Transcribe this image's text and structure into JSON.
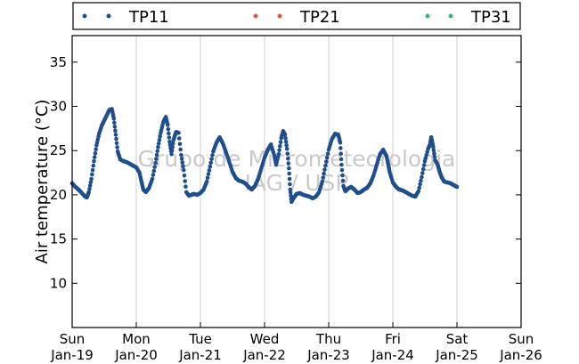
{
  "watermark": {
    "line1": "Grupo de Micrometeorologia",
    "line2": "IAG / USP"
  },
  "chart_data": {
    "type": "scatter",
    "ylabel": "Air temperature (°C)",
    "ylim": [
      5,
      38
    ],
    "yticks": [
      10,
      15,
      20,
      25,
      30,
      35
    ],
    "xlim": [
      "2014-01-19",
      "2014-01-26"
    ],
    "xticks": [
      {
        "day": "Sun",
        "date": "Jan-19"
      },
      {
        "day": "Mon",
        "date": "Jan-20"
      },
      {
        "day": "Tue",
        "date": "Jan-21"
      },
      {
        "day": "Wed",
        "date": "Jan-22"
      },
      {
        "day": "Thu",
        "date": "Jan-23"
      },
      {
        "day": "Fri",
        "date": "Jan-24"
      },
      {
        "day": "Sat",
        "date": "Jan-25"
      },
      {
        "day": "Sun",
        "date": "Jan-26"
      }
    ],
    "grid": "vertical",
    "legend_position": "top",
    "series": [
      {
        "name": "TP11",
        "color": "#1f4e8c",
        "points": [
          [
            0.0,
            21.3
          ],
          [
            0.05,
            20.9
          ],
          [
            0.1,
            20.6
          ],
          [
            0.15,
            20.2
          ],
          [
            0.2,
            19.8
          ],
          [
            0.23,
            19.7
          ],
          [
            0.26,
            20.3
          ],
          [
            0.3,
            21.8
          ],
          [
            0.34,
            23.8
          ],
          [
            0.38,
            25.6
          ],
          [
            0.42,
            26.9
          ],
          [
            0.46,
            27.8
          ],
          [
            0.5,
            28.4
          ],
          [
            0.54,
            29.0
          ],
          [
            0.58,
            29.6
          ],
          [
            0.62,
            29.7
          ],
          [
            0.65,
            28.6
          ],
          [
            0.68,
            26.8
          ],
          [
            0.71,
            24.9
          ],
          [
            0.75,
            24.0
          ],
          [
            0.8,
            23.8
          ],
          [
            0.85,
            23.7
          ],
          [
            0.9,
            23.5
          ],
          [
            0.95,
            23.3
          ],
          [
            1.0,
            23.1
          ],
          [
            1.05,
            22.5
          ],
          [
            1.08,
            21.5
          ],
          [
            1.11,
            20.6
          ],
          [
            1.15,
            20.3
          ],
          [
            1.2,
            20.8
          ],
          [
            1.25,
            21.8
          ],
          [
            1.3,
            23.6
          ],
          [
            1.34,
            25.4
          ],
          [
            1.38,
            27.0
          ],
          [
            1.42,
            28.2
          ],
          [
            1.46,
            28.8
          ],
          [
            1.49,
            27.9
          ],
          [
            1.52,
            26.0
          ],
          [
            1.55,
            24.6
          ],
          [
            1.58,
            26.2
          ],
          [
            1.62,
            27.1
          ],
          [
            1.66,
            27.0
          ],
          [
            1.7,
            24.5
          ],
          [
            1.74,
            22.8
          ],
          [
            1.78,
            20.3
          ],
          [
            1.82,
            19.9
          ],
          [
            1.86,
            20.0
          ],
          [
            1.9,
            20.1
          ],
          [
            1.95,
            20.0
          ],
          [
            2.0,
            20.2
          ],
          [
            2.05,
            20.6
          ],
          [
            2.1,
            21.5
          ],
          [
            2.15,
            23.2
          ],
          [
            2.2,
            24.9
          ],
          [
            2.25,
            25.9
          ],
          [
            2.3,
            26.5
          ],
          [
            2.35,
            25.8
          ],
          [
            2.4,
            24.8
          ],
          [
            2.45,
            23.7
          ],
          [
            2.5,
            22.6
          ],
          [
            2.55,
            21.9
          ],
          [
            2.6,
            21.6
          ],
          [
            2.65,
            21.5
          ],
          [
            2.7,
            21.3
          ],
          [
            2.75,
            20.9
          ],
          [
            2.8,
            20.6
          ],
          [
            2.85,
            21.0
          ],
          [
            2.9,
            21.8
          ],
          [
            2.95,
            23.0
          ],
          [
            3.0,
            24.2
          ],
          [
            3.05,
            25.1
          ],
          [
            3.1,
            25.7
          ],
          [
            3.15,
            24.5
          ],
          [
            3.18,
            23.4
          ],
          [
            3.22,
            24.6
          ],
          [
            3.26,
            26.4
          ],
          [
            3.29,
            27.2
          ],
          [
            3.32,
            26.8
          ],
          [
            3.35,
            25.2
          ],
          [
            3.38,
            23.0
          ],
          [
            3.4,
            20.6
          ],
          [
            3.42,
            19.2
          ],
          [
            3.45,
            19.6
          ],
          [
            3.5,
            20.1
          ],
          [
            3.55,
            20.2
          ],
          [
            3.6,
            20.0
          ],
          [
            3.65,
            19.9
          ],
          [
            3.7,
            19.8
          ],
          [
            3.75,
            19.6
          ],
          [
            3.8,
            19.8
          ],
          [
            3.85,
            20.3
          ],
          [
            3.9,
            21.5
          ],
          [
            3.95,
            23.3
          ],
          [
            4.0,
            25.1
          ],
          [
            4.05,
            26.3
          ],
          [
            4.1,
            26.9
          ],
          [
            4.15,
            26.8
          ],
          [
            4.18,
            25.9
          ],
          [
            4.2,
            23.4
          ],
          [
            4.23,
            21.0
          ],
          [
            4.26,
            20.4
          ],
          [
            4.3,
            20.7
          ],
          [
            4.35,
            20.9
          ],
          [
            4.4,
            20.6
          ],
          [
            4.45,
            20.2
          ],
          [
            4.5,
            20.3
          ],
          [
            4.55,
            20.6
          ],
          [
            4.6,
            20.8
          ],
          [
            4.65,
            21.3
          ],
          [
            4.7,
            22.2
          ],
          [
            4.75,
            23.4
          ],
          [
            4.8,
            24.6
          ],
          [
            4.85,
            25.1
          ],
          [
            4.9,
            24.4
          ],
          [
            4.93,
            23.4
          ],
          [
            4.95,
            22.6
          ],
          [
            5.0,
            21.4
          ],
          [
            5.05,
            20.9
          ],
          [
            5.1,
            20.6
          ],
          [
            5.15,
            20.5
          ],
          [
            5.2,
            20.3
          ],
          [
            5.25,
            20.1
          ],
          [
            5.3,
            19.9
          ],
          [
            5.35,
            19.8
          ],
          [
            5.4,
            20.4
          ],
          [
            5.45,
            22.0
          ],
          [
            5.5,
            23.8
          ],
          [
            5.55,
            25.2
          ],
          [
            5.58,
            25.7
          ],
          [
            5.6,
            26.5
          ],
          [
            5.63,
            25.4
          ],
          [
            5.66,
            23.9
          ],
          [
            5.7,
            23.4
          ],
          [
            5.73,
            22.6
          ],
          [
            5.76,
            22.0
          ],
          [
            5.8,
            21.5
          ],
          [
            5.85,
            21.4
          ],
          [
            5.9,
            21.3
          ],
          [
            5.95,
            21.1
          ],
          [
            6.0,
            20.9
          ]
        ]
      },
      {
        "name": "TP21",
        "color": "#d9534f",
        "points": []
      },
      {
        "name": "TP31",
        "color": "#3cb371",
        "points": []
      }
    ]
  }
}
